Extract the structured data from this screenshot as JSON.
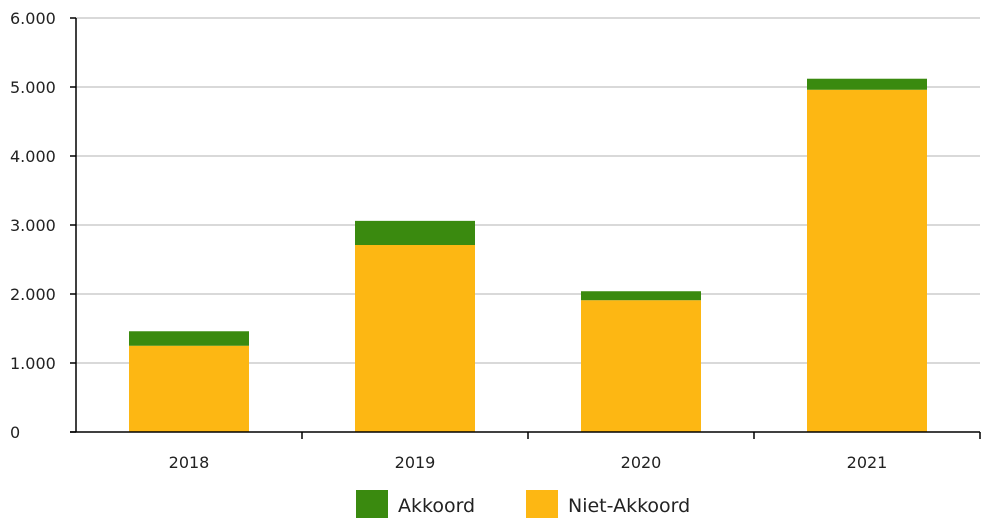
{
  "chart_data": {
    "type": "bar",
    "stacked": true,
    "categories": [
      "2018",
      "2019",
      "2020",
      "2021"
    ],
    "series": [
      {
        "name": "Niet-Akkoord",
        "values": [
          1250,
          2710,
          1910,
          4960
        ],
        "color": "#fdb713"
      },
      {
        "name": "Akkoord",
        "values": [
          210,
          350,
          130,
          160
        ],
        "color": "#3a8a0f"
      }
    ],
    "ylim": [
      0,
      6000
    ],
    "yticks": [
      0,
      1000,
      2000,
      3000,
      4000,
      5000,
      6000
    ],
    "ytick_labels": [
      "0",
      "1.000",
      "2.000",
      "3.000",
      "4.000",
      "5.000",
      "6.000"
    ],
    "grid": true,
    "legend": {
      "position": "bottom",
      "entries": [
        {
          "label": "Akkoord",
          "color": "#3a8a0f"
        },
        {
          "label": "Niet-Akkoord",
          "color": "#fdb713"
        }
      ]
    }
  }
}
